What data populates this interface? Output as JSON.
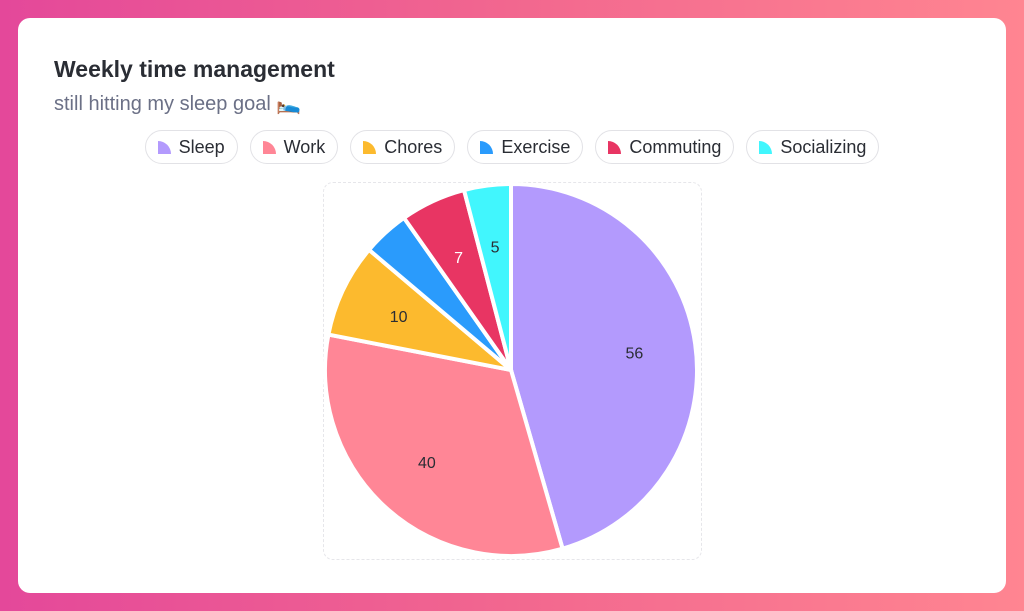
{
  "chart_data": {
    "type": "pie",
    "title": "Weekly time management",
    "subtitle": "still hitting my sleep goal 🛌",
    "categories": [
      "Sleep",
      "Work",
      "Chores",
      "Exercise",
      "Commuting",
      "Socializing"
    ],
    "values": [
      56,
      40,
      10,
      5,
      7,
      5
    ],
    "data_labels": [
      "56",
      "40",
      "10",
      null,
      "7",
      "5"
    ],
    "colors": [
      "#b39afd",
      "#ff8696",
      "#fcba2e",
      "#2a9bfc",
      "#e83563",
      "#41f6fd"
    ],
    "label_colors": [
      "#2a2d34",
      "#2a2d34",
      "#2a2d34",
      "#2a2d34",
      "#ffffff",
      "#2a2d34"
    ],
    "legend_placement": "top",
    "start_angle": "top, clockwise"
  }
}
